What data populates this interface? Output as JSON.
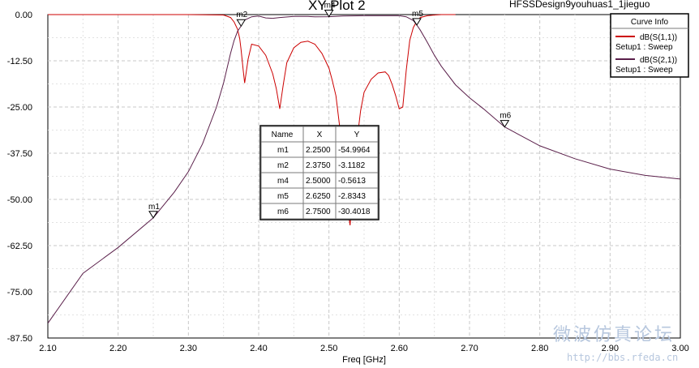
{
  "chart_data": {
    "type": "line",
    "title": "XY Plot 2",
    "design_name": "HFSSDesign9youhuas1_1jieguo",
    "xlabel": "Freq [GHz]",
    "xlim": [
      2.1,
      3.0
    ],
    "ylim": [
      -87.5,
      0.0
    ],
    "x_ticks": [
      "2.10",
      "2.20",
      "2.30",
      "2.40",
      "2.50",
      "2.60",
      "2.70",
      "2.80",
      "2.90",
      "3.00"
    ],
    "y_ticks": [
      "0.00",
      "-12.50",
      "-25.00",
      "-37.50",
      "-50.00",
      "-62.50",
      "-75.00",
      "-87.50"
    ],
    "grid": true,
    "legend": {
      "title": "Curve Info",
      "position": "top-right",
      "entries": [
        {
          "name": "dB(S(1,1))",
          "sub": "Setup1 : Sweep",
          "color": "#cc0000"
        },
        {
          "name": "dB(S(2,1))",
          "sub": "Setup1 : Sweep",
          "color": "#5a1f4a"
        }
      ]
    },
    "series": [
      {
        "name": "dB(S(1,1))",
        "color": "#cc0000",
        "x": [
          2.1,
          2.2,
          2.3,
          2.35,
          2.36,
          2.365,
          2.37,
          2.373,
          2.375,
          2.378,
          2.38,
          2.385,
          2.39,
          2.4,
          2.41,
          2.42,
          2.425,
          2.43,
          2.435,
          2.44,
          2.45,
          2.46,
          2.47,
          2.48,
          2.49,
          2.5,
          2.505,
          2.51,
          2.515,
          2.52,
          2.525,
          2.53,
          2.535,
          2.54,
          2.545,
          2.55,
          2.56,
          2.57,
          2.58,
          2.585,
          2.59,
          2.595,
          2.6,
          2.605,
          2.61,
          2.615,
          2.62,
          2.625,
          2.63,
          2.64,
          2.65,
          2.66,
          2.67,
          2.68
        ],
        "y": [
          0.0,
          0.0,
          0.0,
          -0.1,
          -0.8,
          -2.0,
          -4.0,
          -6.5,
          -9.5,
          -15.0,
          -18.5,
          -12.0,
          -8.0,
          -8.5,
          -11.0,
          -16.0,
          -20.0,
          -25.5,
          -19.0,
          -13.0,
          -9.0,
          -7.5,
          -7.2,
          -8.0,
          -10.5,
          -14.5,
          -18.0,
          -22.0,
          -30.0,
          -40.0,
          -50.0,
          -57.0,
          -45.0,
          -34.0,
          -26.0,
          -21.0,
          -17.5,
          -15.8,
          -15.5,
          -16.5,
          -19.0,
          -22.0,
          -25.5,
          -25.0,
          -15.0,
          -7.0,
          -3.5,
          -1.8,
          -0.8,
          -0.3,
          -0.1,
          0.0,
          0.0,
          0.0
        ]
      },
      {
        "name": "dB(S(2,1))",
        "color": "#5a1f4a",
        "x": [
          2.1,
          2.15,
          2.2,
          2.25,
          2.28,
          2.3,
          2.32,
          2.34,
          2.35,
          2.36,
          2.365,
          2.37,
          2.375,
          2.38,
          2.39,
          2.4,
          2.41,
          2.42,
          2.43,
          2.45,
          2.47,
          2.48,
          2.5,
          2.52,
          2.55,
          2.58,
          2.6,
          2.61,
          2.62,
          2.625,
          2.63,
          2.64,
          2.65,
          2.66,
          2.68,
          2.7,
          2.72,
          2.75,
          2.8,
          2.85,
          2.9,
          2.95,
          3.0
        ],
        "y": [
          -83.5,
          -70.0,
          -63.0,
          -55.0,
          -48.0,
          -42.5,
          -35.0,
          -25.0,
          -18.5,
          -10.5,
          -7.0,
          -4.5,
          -3.1,
          -1.5,
          -0.6,
          -0.4,
          -0.9,
          -1.0,
          -0.8,
          -0.5,
          -0.5,
          -0.6,
          -0.56,
          -0.4,
          -0.3,
          -0.3,
          -0.3,
          -0.6,
          -1.6,
          -2.83,
          -4.2,
          -7.5,
          -11.0,
          -14.0,
          -19.0,
          -22.5,
          -25.5,
          -30.4,
          -35.5,
          -39.0,
          -41.8,
          -43.5,
          -44.5
        ]
      }
    ],
    "markers": [
      {
        "name": "m1",
        "x": 2.25,
        "y": -54.9964
      },
      {
        "name": "m2",
        "x": 2.375,
        "y": -3.1182
      },
      {
        "name": "m4",
        "x": 2.5,
        "y": -0.5613
      },
      {
        "name": "m5",
        "x": 2.625,
        "y": -2.8343
      },
      {
        "name": "m6",
        "x": 2.75,
        "y": -30.4018
      }
    ],
    "marker_table": {
      "headers": [
        "Name",
        "X",
        "Y"
      ],
      "rows": [
        [
          "m1",
          "2.2500",
          "-54.9964"
        ],
        [
          "m2",
          "2.3750",
          "-3.1182"
        ],
        [
          "m4",
          "2.5000",
          "-0.5613"
        ],
        [
          "m5",
          "2.6250",
          "-2.8343"
        ],
        [
          "m6",
          "2.7500",
          "-30.4018"
        ]
      ]
    }
  },
  "watermark": {
    "text": "微波仿真论坛",
    "url": "http://bbs.rfeda.cn"
  }
}
